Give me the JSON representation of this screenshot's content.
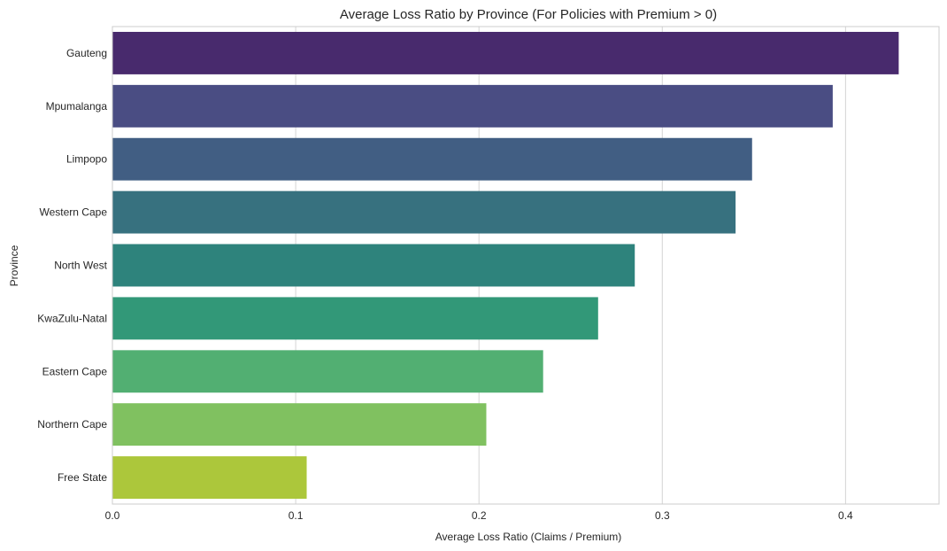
{
  "chart_data": {
    "type": "bar",
    "orientation": "horizontal",
    "title": "Average Loss Ratio by Province (For Policies with Premium > 0)",
    "xlabel": "Average Loss Ratio (Claims / Premium)",
    "ylabel": "Province",
    "xlim": [
      0,
      0.451
    ],
    "xticks": [
      0.0,
      0.1,
      0.2,
      0.3,
      0.4
    ],
    "xtick_labels": [
      "0.0",
      "0.1",
      "0.2",
      "0.3",
      "0.4"
    ],
    "grid": "vertical",
    "categories": [
      "Gauteng",
      "Mpumalanga",
      "Limpopo",
      "Western Cape",
      "North West",
      "KwaZulu-Natal",
      "Eastern Cape",
      "Northern Cape",
      "Free State"
    ],
    "values": [
      0.429,
      0.393,
      0.349,
      0.34,
      0.285,
      0.265,
      0.235,
      0.204,
      0.106
    ],
    "colors": [
      "#482a6d",
      "#4a4d83",
      "#415e83",
      "#37717f",
      "#2e837c",
      "#329878",
      "#52af72",
      "#80c160",
      "#acc73b"
    ]
  }
}
